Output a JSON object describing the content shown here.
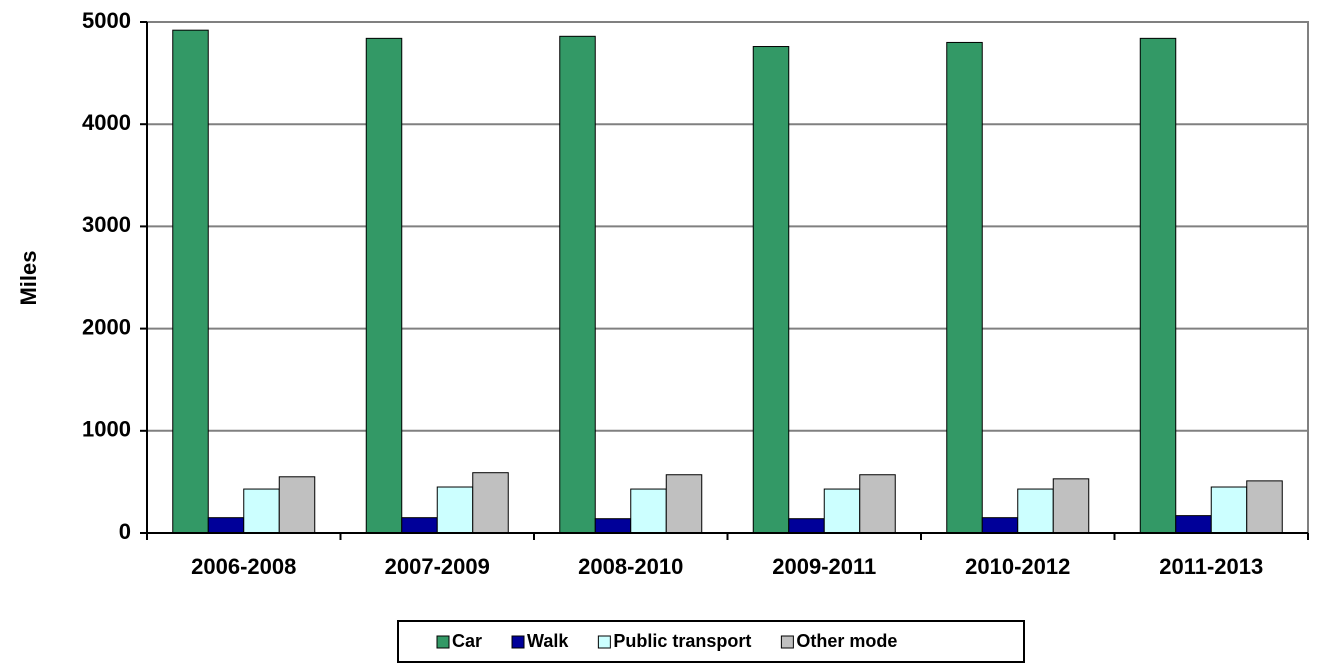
{
  "chart_data": {
    "type": "bar",
    "y_label": "Miles",
    "categories": [
      "2006-2008",
      "2007-2009",
      "2008-2010",
      "2009-2011",
      "2010-2012",
      "2011-2013"
    ],
    "series": [
      {
        "name": "Car",
        "color": "#339966",
        "values": [
          4920,
          4840,
          4860,
          4760,
          4800,
          4840
        ]
      },
      {
        "name": "Walk",
        "color": "#000099",
        "values": [
          150,
          150,
          140,
          140,
          150,
          170
        ]
      },
      {
        "name": "Public transport",
        "color": "#ccffff",
        "values": [
          430,
          450,
          430,
          430,
          430,
          450
        ]
      },
      {
        "name": "Other mode",
        "color": "#c0c0c0",
        "values": [
          550,
          590,
          570,
          570,
          530,
          510
        ]
      }
    ],
    "ylim": [
      0,
      5000
    ],
    "yticks": [
      0,
      1000,
      2000,
      3000,
      4000,
      5000
    ],
    "grid": true,
    "legend": "bottom"
  }
}
